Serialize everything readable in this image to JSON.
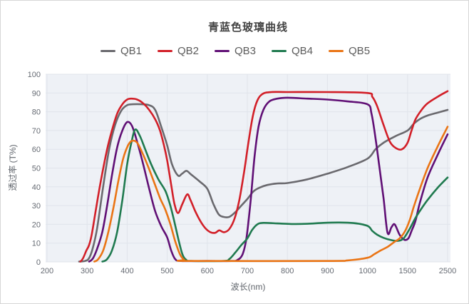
{
  "chart_data": {
    "type": "line",
    "title": "青蓝色玻璃曲线",
    "xlabel": "波长(nm)",
    "ylabel": "透过率 (T%)",
    "ylim": [
      0,
      100
    ],
    "y_ticks": [
      "0",
      "10",
      "20",
      "30",
      "40",
      "50",
      "60",
      "70",
      "80",
      "90",
      "100"
    ],
    "x_ticks": [
      "200",
      "300",
      "400",
      "500",
      "600",
      "700",
      "800",
      "900",
      "1000",
      "1500",
      "2500"
    ],
    "x_tick_values": [
      200,
      300,
      400,
      500,
      600,
      700,
      800,
      900,
      1000,
      1500,
      2500
    ],
    "axis_note": "category-style axis: ticks equally spaced, non-linear wavelength scale",
    "grid": "on",
    "legend_position": "top-center",
    "style": {
      "plot_bg": "#eef1f6",
      "grid_color": "#e0e4eb",
      "tick_color": "#666b73",
      "title_color": "#434343"
    },
    "series": [
      {
        "name": "QB1",
        "color": "#6a696e",
        "points": [
          [
            280,
            0
          ],
          [
            295,
            0.5
          ],
          [
            305,
            2
          ],
          [
            315,
            8
          ],
          [
            325,
            18
          ],
          [
            340,
            40
          ],
          [
            355,
            60
          ],
          [
            370,
            73
          ],
          [
            385,
            80.5
          ],
          [
            400,
            83.5
          ],
          [
            415,
            84
          ],
          [
            435,
            84
          ],
          [
            455,
            83.5
          ],
          [
            470,
            81
          ],
          [
            485,
            72
          ],
          [
            500,
            62
          ],
          [
            512,
            52
          ],
          [
            527,
            46
          ],
          [
            537,
            47
          ],
          [
            548,
            48.5
          ],
          [
            560,
            46.5
          ],
          [
            580,
            43
          ],
          [
            600,
            39
          ],
          [
            615,
            31
          ],
          [
            628,
            25.5
          ],
          [
            640,
            24
          ],
          [
            655,
            24
          ],
          [
            670,
            26.5
          ],
          [
            685,
            30
          ],
          [
            700,
            33.5
          ],
          [
            715,
            37.5
          ],
          [
            730,
            39.5
          ],
          [
            750,
            41
          ],
          [
            775,
            41.8
          ],
          [
            800,
            42
          ],
          [
            850,
            44
          ],
          [
            900,
            47
          ],
          [
            950,
            50.5
          ],
          [
            1000,
            55
          ],
          [
            1100,
            60
          ],
          [
            1200,
            63.5
          ],
          [
            1350,
            67
          ],
          [
            1500,
            70
          ],
          [
            1650,
            73.5
          ],
          [
            1800,
            76
          ],
          [
            2000,
            78
          ],
          [
            2250,
            79.5
          ],
          [
            2500,
            81
          ]
        ]
      },
      {
        "name": "QB2",
        "color": "#d21f28",
        "points": [
          [
            283,
            0
          ],
          [
            290,
            2
          ],
          [
            298,
            6
          ],
          [
            305,
            9
          ],
          [
            312,
            15
          ],
          [
            322,
            28
          ],
          [
            335,
            44
          ],
          [
            350,
            60
          ],
          [
            362,
            70
          ],
          [
            375,
            79
          ],
          [
            388,
            84
          ],
          [
            400,
            86.5
          ],
          [
            410,
            87
          ],
          [
            425,
            86.5
          ],
          [
            440,
            84.5
          ],
          [
            455,
            81
          ],
          [
            470,
            76
          ],
          [
            482,
            70
          ],
          [
            492,
            62
          ],
          [
            500,
            54
          ],
          [
            510,
            41
          ],
          [
            518,
            31
          ],
          [
            527,
            26
          ],
          [
            538,
            31
          ],
          [
            550,
            36
          ],
          [
            558,
            33
          ],
          [
            570,
            27
          ],
          [
            582,
            22
          ],
          [
            595,
            18
          ],
          [
            608,
            15.8
          ],
          [
            620,
            15.5
          ],
          [
            630,
            16.8
          ],
          [
            642,
            15.8
          ],
          [
            655,
            17.5
          ],
          [
            668,
            23
          ],
          [
            680,
            33
          ],
          [
            692,
            48
          ],
          [
            703,
            64
          ],
          [
            714,
            78
          ],
          [
            725,
            86
          ],
          [
            738,
            89.5
          ],
          [
            760,
            90.5
          ],
          [
            800,
            90.5
          ],
          [
            900,
            90.5
          ],
          [
            1000,
            90
          ],
          [
            1060,
            88
          ],
          [
            1120,
            83
          ],
          [
            1200,
            73
          ],
          [
            1280,
            64
          ],
          [
            1360,
            60.5
          ],
          [
            1430,
            60
          ],
          [
            1500,
            63.5
          ],
          [
            1600,
            70
          ],
          [
            1700,
            76
          ],
          [
            1850,
            81
          ],
          [
            2000,
            84.5
          ],
          [
            2250,
            88
          ],
          [
            2500,
            91
          ]
        ]
      },
      {
        "name": "QB3",
        "color": "#600f75",
        "points": [
          [
            305,
            0
          ],
          [
            315,
            2
          ],
          [
            325,
            7
          ],
          [
            338,
            16
          ],
          [
            350,
            30
          ],
          [
            362,
            46
          ],
          [
            375,
            61
          ],
          [
            388,
            70
          ],
          [
            400,
            74.5
          ],
          [
            412,
            72.5
          ],
          [
            425,
            64
          ],
          [
            440,
            52
          ],
          [
            455,
            39
          ],
          [
            470,
            27
          ],
          [
            485,
            19
          ],
          [
            500,
            13
          ],
          [
            510,
            6
          ],
          [
            520,
            1.5
          ],
          [
            535,
            0.5
          ],
          [
            600,
            0.5
          ],
          [
            660,
            0.5
          ],
          [
            675,
            1
          ],
          [
            688,
            4
          ],
          [
            698,
            13
          ],
          [
            708,
            32
          ],
          [
            718,
            56
          ],
          [
            728,
            72
          ],
          [
            740,
            81
          ],
          [
            755,
            85.5
          ],
          [
            775,
            87
          ],
          [
            800,
            87.5
          ],
          [
            850,
            87
          ],
          [
            900,
            86.5
          ],
          [
            950,
            85.5
          ],
          [
            1000,
            84
          ],
          [
            1050,
            79
          ],
          [
            1100,
            66
          ],
          [
            1150,
            50
          ],
          [
            1200,
            34
          ],
          [
            1250,
            15.5
          ],
          [
            1300,
            18.5
          ],
          [
            1340,
            20
          ],
          [
            1400,
            14.5
          ],
          [
            1460,
            11.8
          ],
          [
            1520,
            12.5
          ],
          [
            1600,
            16.5
          ],
          [
            1700,
            22
          ],
          [
            1800,
            31
          ],
          [
            2000,
            45
          ],
          [
            2250,
            57
          ],
          [
            2500,
            68
          ]
        ]
      },
      {
        "name": "QB4",
        "color": "#1f7a4f",
        "points": [
          [
            338,
            0
          ],
          [
            350,
            1.5
          ],
          [
            362,
            6
          ],
          [
            375,
            16
          ],
          [
            388,
            33
          ],
          [
            400,
            52
          ],
          [
            410,
            63
          ],
          [
            420,
            70.5
          ],
          [
            432,
            67
          ],
          [
            445,
            60
          ],
          [
            460,
            52
          ],
          [
            478,
            44
          ],
          [
            495,
            38
          ],
          [
            505,
            32
          ],
          [
            515,
            24
          ],
          [
            528,
            12
          ],
          [
            538,
            4
          ],
          [
            548,
            1
          ],
          [
            560,
            0.5
          ],
          [
            640,
            0.5
          ],
          [
            655,
            1.5
          ],
          [
            670,
            5
          ],
          [
            685,
            9
          ],
          [
            700,
            12.5
          ],
          [
            712,
            17
          ],
          [
            725,
            20
          ],
          [
            740,
            20.8
          ],
          [
            775,
            20.5
          ],
          [
            810,
            20.2
          ],
          [
            850,
            20.3
          ],
          [
            890,
            20.8
          ],
          [
            930,
            21
          ],
          [
            965,
            20.7
          ],
          [
            1000,
            19.2
          ],
          [
            1060,
            16.5
          ],
          [
            1120,
            14.5
          ],
          [
            1200,
            12.8
          ],
          [
            1300,
            11.6
          ],
          [
            1380,
            11.2
          ],
          [
            1450,
            12.5
          ],
          [
            1550,
            17.5
          ],
          [
            1700,
            23.5
          ],
          [
            1850,
            28.5
          ],
          [
            2000,
            33
          ],
          [
            2250,
            39.5
          ],
          [
            2500,
            45
          ]
        ]
      },
      {
        "name": "QB5",
        "color": "#ea7414",
        "points": [
          [
            318,
            0
          ],
          [
            328,
            1.5
          ],
          [
            340,
            6
          ],
          [
            352,
            15
          ],
          [
            365,
            28
          ],
          [
            378,
            43
          ],
          [
            390,
            55
          ],
          [
            402,
            62
          ],
          [
            412,
            64.5
          ],
          [
            425,
            63.5
          ],
          [
            438,
            58
          ],
          [
            452,
            51
          ],
          [
            468,
            42
          ],
          [
            482,
            34
          ],
          [
            495,
            28
          ],
          [
            508,
            20
          ],
          [
            520,
            11
          ],
          [
            532,
            4
          ],
          [
            542,
            1.2
          ],
          [
            555,
            0.5
          ],
          [
            900,
            0.5
          ],
          [
            950,
            0.8
          ],
          [
            1000,
            2.2
          ],
          [
            1080,
            4
          ],
          [
            1160,
            6
          ],
          [
            1250,
            8
          ],
          [
            1330,
            10.5
          ],
          [
            1400,
            12.5
          ],
          [
            1470,
            16.5
          ],
          [
            1550,
            22
          ],
          [
            1650,
            29
          ],
          [
            1800,
            38.5
          ],
          [
            2000,
            50
          ],
          [
            2250,
            61.5
          ],
          [
            2500,
            72
          ]
        ]
      }
    ]
  }
}
